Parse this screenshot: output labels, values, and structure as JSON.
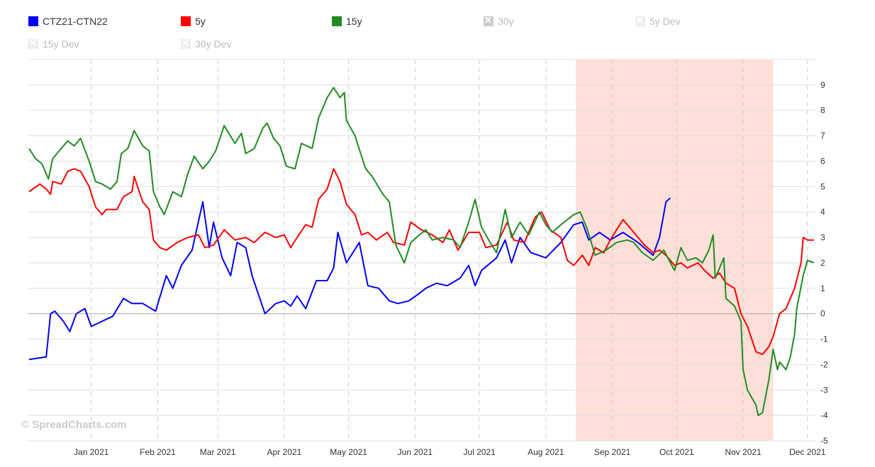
{
  "legend": [
    {
      "label": "CTZ21-CTN22",
      "color": "#0000ff",
      "visible": true
    },
    {
      "label": "5y",
      "color": "#ff0000",
      "visible": true
    },
    {
      "label": "15y",
      "color": "#228b22",
      "visible": true
    },
    {
      "label": "30y",
      "visible": false
    },
    {
      "label": "5y Dev",
      "visible": false
    },
    {
      "label": "15y Dev",
      "visible": false
    },
    {
      "label": "30y Dev",
      "visible": false
    }
  ],
  "watermark": "© SpreadCharts.com",
  "chart_data": {
    "type": "line",
    "x_unit": "days since 2020-12-01",
    "xlim": [
      0,
      369
    ],
    "ylim": [
      -5,
      10
    ],
    "yticks": [
      -5,
      -4,
      -3,
      -2,
      -1,
      0,
      1,
      2,
      3,
      4,
      5,
      6,
      7,
      8,
      9
    ],
    "xticks": [
      {
        "day": 31,
        "label": "Jan 2021"
      },
      {
        "day": 62,
        "label": "Feb 2021"
      },
      {
        "day": 90,
        "label": "Mar 2021"
      },
      {
        "day": 121,
        "label": "Apr 2021"
      },
      {
        "day": 151,
        "label": "May 2021"
      },
      {
        "day": 182,
        "label": "Jun 2021"
      },
      {
        "day": 212,
        "label": "Jul 2021"
      },
      {
        "day": 243,
        "label": "Aug 2021"
      },
      {
        "day": 274,
        "label": "Sep 2021"
      },
      {
        "day": 304,
        "label": "Oct 2021"
      },
      {
        "day": 335,
        "label": "Nov 2021"
      },
      {
        "day": 365,
        "label": "Dec 2021"
      }
    ],
    "highlight_band": {
      "from": 257,
      "to": 349,
      "color": "#ffe0d8"
    },
    "grid": true,
    "series": [
      {
        "name": "CTZ21-CTN22",
        "color": "#0000ff",
        "points": [
          [
            2,
            -1.8
          ],
          [
            10,
            -1.7
          ],
          [
            12,
            0
          ],
          [
            14,
            0.1
          ],
          [
            18,
            -0.3
          ],
          [
            21,
            -0.7
          ],
          [
            24,
            0
          ],
          [
            28,
            0.2
          ],
          [
            31,
            -0.5
          ],
          [
            36,
            -0.3
          ],
          [
            41,
            -0.1
          ],
          [
            46,
            0.6
          ],
          [
            50,
            0.4
          ],
          [
            55,
            0.4
          ],
          [
            61,
            0.1
          ],
          [
            66,
            1.5
          ],
          [
            69,
            1.0
          ],
          [
            73,
            1.9
          ],
          [
            78,
            2.5
          ],
          [
            83,
            4.4
          ],
          [
            86,
            2.6
          ],
          [
            88,
            3.6
          ],
          [
            92,
            2.2
          ],
          [
            96,
            1.5
          ],
          [
            99,
            2.8
          ],
          [
            103,
            2.6
          ],
          [
            106,
            1.5
          ],
          [
            112,
            0.0
          ],
          [
            117,
            0.4
          ],
          [
            121,
            0.5
          ],
          [
            124,
            0.3
          ],
          [
            127,
            0.7
          ],
          [
            131,
            0.2
          ],
          [
            136,
            1.3
          ],
          [
            141,
            1.3
          ],
          [
            144,
            1.8
          ],
          [
            146,
            3.2
          ],
          [
            150,
            2.0
          ],
          [
            156,
            2.8
          ],
          [
            160,
            1.1
          ],
          [
            165,
            1.0
          ],
          [
            170,
            0.5
          ],
          [
            174,
            0.4
          ],
          [
            179,
            0.5
          ],
          [
            184,
            0.8
          ],
          [
            187,
            1.0
          ],
          [
            192,
            1.2
          ],
          [
            197,
            1.1
          ],
          [
            203,
            1.4
          ],
          [
            207,
            1.9
          ],
          [
            210,
            1.1
          ],
          [
            213,
            1.7
          ],
          [
            220,
            2.2
          ],
          [
            224,
            2.9
          ],
          [
            227,
            2.0
          ],
          [
            231,
            3.0
          ],
          [
            236,
            2.4
          ],
          [
            243,
            2.2
          ],
          [
            250,
            2.8
          ],
          [
            256,
            3.5
          ],
          [
            260,
            3.6
          ],
          [
            263,
            2.9
          ],
          [
            268,
            3.2
          ],
          [
            273,
            2.9
          ],
          [
            279,
            3.2
          ],
          [
            286,
            2.8
          ],
          [
            293,
            2.3
          ],
          [
            296,
            3.0
          ],
          [
            299,
            4.4
          ],
          [
            301,
            4.55
          ]
        ]
      },
      {
        "name": "5y",
        "color": "#ff0000",
        "points": [
          [
            2,
            4.8
          ],
          [
            7,
            5.1
          ],
          [
            10,
            4.9
          ],
          [
            12,
            4.7
          ],
          [
            13,
            5.2
          ],
          [
            17,
            5.1
          ],
          [
            20,
            5.6
          ],
          [
            23,
            5.7
          ],
          [
            26,
            5.6
          ],
          [
            30,
            5.0
          ],
          [
            33,
            4.2
          ],
          [
            36,
            3.9
          ],
          [
            38,
            4.1
          ],
          [
            43,
            4.1
          ],
          [
            46,
            4.6
          ],
          [
            50,
            4.8
          ],
          [
            51,
            5.4
          ],
          [
            55,
            4.4
          ],
          [
            58,
            4.1
          ],
          [
            60,
            2.9
          ],
          [
            63,
            2.6
          ],
          [
            66,
            2.5
          ],
          [
            71,
            2.8
          ],
          [
            76,
            3.0
          ],
          [
            81,
            3.1
          ],
          [
            84,
            2.6
          ],
          [
            88,
            2.7
          ],
          [
            93,
            3.3
          ],
          [
            98,
            2.9
          ],
          [
            103,
            3.0
          ],
          [
            107,
            2.8
          ],
          [
            112,
            3.2
          ],
          [
            117,
            3.0
          ],
          [
            121,
            3.1
          ],
          [
            124,
            2.6
          ],
          [
            127,
            3.0
          ],
          [
            131,
            3.5
          ],
          [
            134,
            3.4
          ],
          [
            137,
            4.5
          ],
          [
            141,
            4.9
          ],
          [
            144,
            5.7
          ],
          [
            147,
            5.2
          ],
          [
            150,
            4.3
          ],
          [
            154,
            3.9
          ],
          [
            157,
            3.1
          ],
          [
            160,
            3.2
          ],
          [
            164,
            2.9
          ],
          [
            169,
            3.2
          ],
          [
            172,
            2.8
          ],
          [
            177,
            2.7
          ],
          [
            180,
            3.6
          ],
          [
            185,
            3.3
          ],
          [
            190,
            3.1
          ],
          [
            195,
            2.8
          ],
          [
            198,
            3.3
          ],
          [
            202,
            2.5
          ],
          [
            207,
            3.2
          ],
          [
            212,
            3.2
          ],
          [
            215,
            2.6
          ],
          [
            220,
            2.7
          ],
          [
            225,
            3.6
          ],
          [
            228,
            2.9
          ],
          [
            233,
            2.8
          ],
          [
            238,
            3.8
          ],
          [
            241,
            4.0
          ],
          [
            245,
            3.3
          ],
          [
            250,
            3.0
          ],
          [
            253,
            2.1
          ],
          [
            256,
            1.9
          ],
          [
            260,
            2.3
          ],
          [
            263,
            1.9
          ],
          [
            266,
            2.6
          ],
          [
            270,
            2.4
          ],
          [
            273,
            2.9
          ],
          [
            276,
            3.3
          ],
          [
            279,
            3.7
          ],
          [
            283,
            3.3
          ],
          [
            286,
            3.0
          ],
          [
            289,
            2.7
          ],
          [
            293,
            2.4
          ],
          [
            296,
            2.5
          ],
          [
            299,
            2.3
          ],
          [
            303,
            1.9
          ],
          [
            306,
            2.0
          ],
          [
            309,
            1.8
          ],
          [
            314,
            2.0
          ],
          [
            317,
            1.7
          ],
          [
            321,
            1.4
          ],
          [
            324,
            1.6
          ],
          [
            327,
            1.2
          ],
          [
            331,
            1.0
          ],
          [
            334,
            0.0
          ],
          [
            337,
            -0.5
          ],
          [
            341,
            -1.5
          ],
          [
            344,
            -1.6
          ],
          [
            347,
            -1.3
          ],
          [
            349,
            -0.9
          ],
          [
            352,
            0.0
          ],
          [
            355,
            0.2
          ],
          [
            359,
            1.0
          ],
          [
            362,
            2.0
          ],
          [
            363,
            3.0
          ],
          [
            365,
            2.9
          ],
          [
            368,
            2.9
          ]
        ]
      },
      {
        "name": "15y",
        "color": "#228b22",
        "points": [
          [
            2,
            6.5
          ],
          [
            5,
            6.1
          ],
          [
            8,
            5.9
          ],
          [
            11,
            5.3
          ],
          [
            13,
            6.1
          ],
          [
            17,
            6.5
          ],
          [
            20,
            6.8
          ],
          [
            23,
            6.6
          ],
          [
            26,
            6.9
          ],
          [
            30,
            6.0
          ],
          [
            33,
            5.2
          ],
          [
            36,
            5.1
          ],
          [
            40,
            4.9
          ],
          [
            43,
            5.2
          ],
          [
            45,
            6.3
          ],
          [
            48,
            6.5
          ],
          [
            51,
            7.2
          ],
          [
            55,
            6.6
          ],
          [
            58,
            6.4
          ],
          [
            60,
            4.8
          ],
          [
            63,
            4.2
          ],
          [
            65,
            3.9
          ],
          [
            69,
            4.8
          ],
          [
            73,
            4.6
          ],
          [
            76,
            5.5
          ],
          [
            79,
            6.2
          ],
          [
            83,
            5.7
          ],
          [
            86,
            6.0
          ],
          [
            89,
            6.4
          ],
          [
            93,
            7.4
          ],
          [
            98,
            6.7
          ],
          [
            101,
            7.1
          ],
          [
            103,
            6.3
          ],
          [
            107,
            6.5
          ],
          [
            111,
            7.3
          ],
          [
            113,
            7.5
          ],
          [
            116,
            6.9
          ],
          [
            119,
            6.6
          ],
          [
            122,
            5.8
          ],
          [
            126,
            5.7
          ],
          [
            129,
            6.7
          ],
          [
            134,
            6.5
          ],
          [
            137,
            7.7
          ],
          [
            141,
            8.5
          ],
          [
            144,
            8.9
          ],
          [
            147,
            8.5
          ],
          [
            149,
            8.7
          ],
          [
            150,
            7.6
          ],
          [
            154,
            7.0
          ],
          [
            157,
            6.2
          ],
          [
            159,
            5.7
          ],
          [
            162,
            5.4
          ],
          [
            167,
            4.7
          ],
          [
            170,
            4.4
          ],
          [
            173,
            2.7
          ],
          [
            177,
            2.0
          ],
          [
            180,
            2.8
          ],
          [
            184,
            3.1
          ],
          [
            187,
            3.3
          ],
          [
            190,
            2.9
          ],
          [
            195,
            3.0
          ],
          [
            200,
            2.9
          ],
          [
            203,
            2.6
          ],
          [
            207,
            3.6
          ],
          [
            210,
            4.5
          ],
          [
            213,
            3.4
          ],
          [
            217,
            2.8
          ],
          [
            220,
            2.4
          ],
          [
            224,
            4.1
          ],
          [
            227,
            3.0
          ],
          [
            231,
            3.6
          ],
          [
            235,
            3.1
          ],
          [
            240,
            4.0
          ],
          [
            243,
            3.5
          ],
          [
            246,
            3.2
          ],
          [
            250,
            3.5
          ],
          [
            253,
            3.7
          ],
          [
            256,
            3.9
          ],
          [
            259,
            4.0
          ],
          [
            262,
            3.4
          ],
          [
            266,
            2.3
          ],
          [
            271,
            2.5
          ],
          [
            276,
            2.8
          ],
          [
            281,
            2.9
          ],
          [
            284,
            2.8
          ],
          [
            288,
            2.4
          ],
          [
            293,
            2.1
          ],
          [
            298,
            2.5
          ],
          [
            303,
            1.7
          ],
          [
            306,
            2.6
          ],
          [
            309,
            2.1
          ],
          [
            313,
            2.2
          ],
          [
            316,
            2.0
          ],
          [
            319,
            2.5
          ],
          [
            321,
            3.1
          ],
          [
            322,
            1.4
          ],
          [
            326,
            2.2
          ],
          [
            327,
            0.6
          ],
          [
            331,
            0.3
          ],
          [
            334,
            -0.3
          ],
          [
            335,
            -2.2
          ],
          [
            337,
            -3.0
          ],
          [
            341,
            -3.6
          ],
          [
            342,
            -4.0
          ],
          [
            344,
            -3.9
          ],
          [
            347,
            -2.6
          ],
          [
            349,
            -1.4
          ],
          [
            351,
            -2.2
          ],
          [
            352,
            -1.9
          ],
          [
            355,
            -2.2
          ],
          [
            357,
            -1.7
          ],
          [
            359,
            -0.8
          ],
          [
            360,
            0.2
          ],
          [
            363,
            1.5
          ],
          [
            365,
            2.1
          ],
          [
            368,
            2.0
          ]
        ]
      }
    ]
  }
}
